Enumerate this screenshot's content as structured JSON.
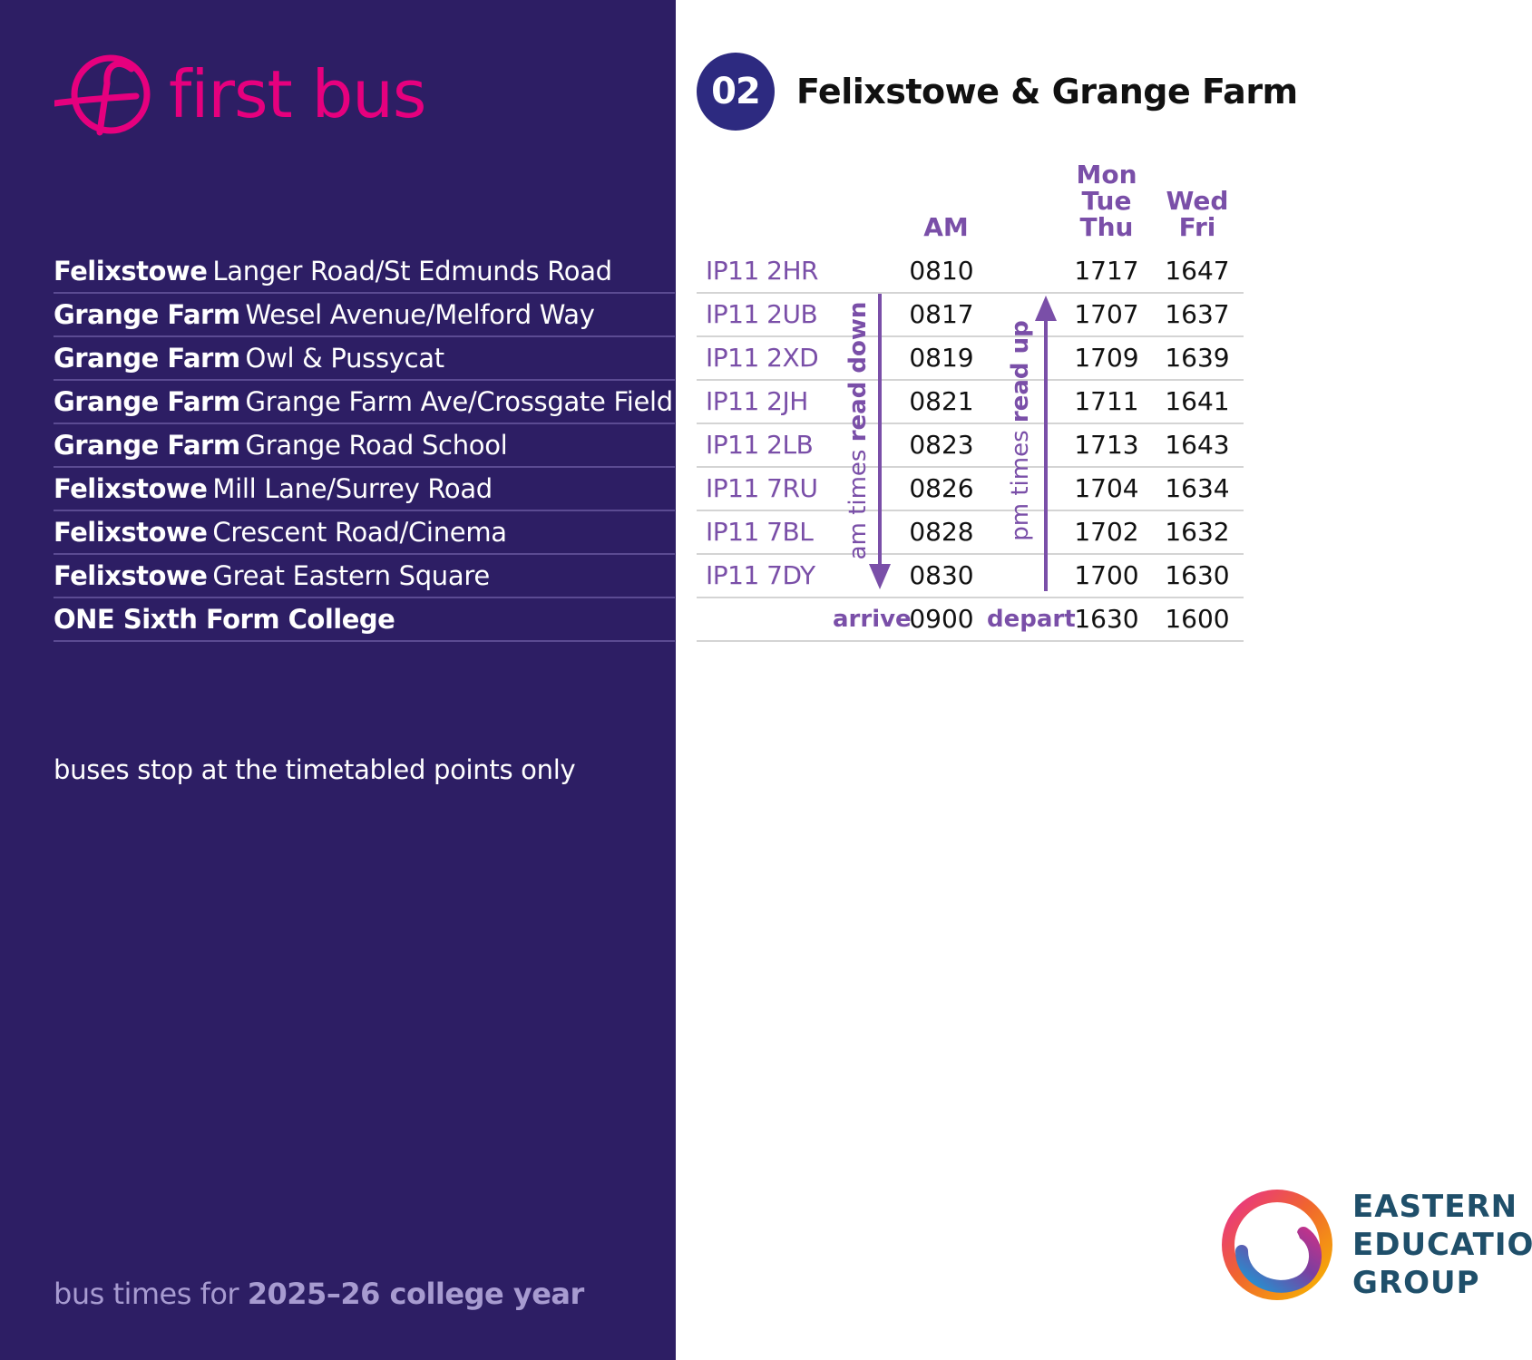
{
  "brand": {
    "name": "first bus",
    "color": "#e6007e"
  },
  "route": {
    "number": "02",
    "title": "Felixstowe & Grange Farm"
  },
  "columns": {
    "am": "AM",
    "mtt": [
      "Mon",
      "Tue",
      "Thu"
    ],
    "wf": [
      "Wed",
      "Fri"
    ]
  },
  "stops": [
    {
      "area": "Felixstowe",
      "name": "Langer Road/St Edmunds Road",
      "postcode": "IP11 2HR",
      "am": "0810",
      "mtt": "1717",
      "wf": "1647"
    },
    {
      "area": "Grange Farm",
      "name": "Wesel Avenue/Melford Way",
      "postcode": "IP11 2UB",
      "am": "0817",
      "mtt": "1707",
      "wf": "1637"
    },
    {
      "area": "Grange Farm",
      "name": "Owl & Pussycat",
      "postcode": "IP11 2XD",
      "am": "0819",
      "mtt": "1709",
      "wf": "1639"
    },
    {
      "area": "Grange Farm",
      "name": "Grange Farm Ave/Crossgate Field",
      "postcode": "IP11 2JH",
      "am": "0821",
      "mtt": "1711",
      "wf": "1641"
    },
    {
      "area": "Grange Farm",
      "name": "Grange Road School",
      "postcode": "IP11 2LB",
      "am": "0823",
      "mtt": "1713",
      "wf": "1643"
    },
    {
      "area": "Felixstowe",
      "name": "Mill Lane/Surrey Road",
      "postcode": "IP11 7RU",
      "am": "0826",
      "mtt": "1704",
      "wf": "1634"
    },
    {
      "area": "Felixstowe",
      "name": "Crescent Road/Cinema",
      "postcode": "IP11 7BL",
      "am": "0828",
      "mtt": "1702",
      "wf": "1632"
    },
    {
      "area": "Felixstowe",
      "name": "Great Eastern Square",
      "postcode": "IP11 7DY",
      "am": "0830",
      "mtt": "1700",
      "wf": "1630"
    }
  ],
  "college": {
    "name": "ONE Sixth Form College",
    "arrive_label": "arrive",
    "arrive": "0900",
    "depart_label": "depart",
    "mtt": "1630",
    "wf": "1600"
  },
  "directions": {
    "am_prefix": "am times ",
    "am_bold": "read down",
    "pm_prefix": "pm times ",
    "pm_bold": "read up"
  },
  "note": "buses stop at the timetabled points only",
  "footer": {
    "prefix": "bus times for ",
    "year": "2025–26 college year"
  },
  "partner": {
    "line1": "EASTERN",
    "line2": "EDUCATION",
    "line3": "GROUP"
  },
  "colors": {
    "panel": "#2d1e64",
    "accent": "#7a4fa8",
    "badge": "#2d2a80"
  }
}
